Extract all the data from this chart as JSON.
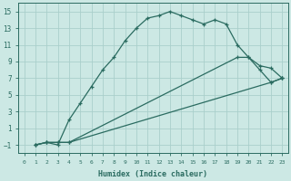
{
  "xlabel": "Humidex (Indice chaleur)",
  "ylabel": "",
  "background_color": "#cce8e4",
  "grid_color": "#aacfcb",
  "line_color": "#2a6b60",
  "xlim": [
    -0.5,
    23.5
  ],
  "ylim": [
    -2.0,
    16.0
  ],
  "xticks": [
    0,
    1,
    2,
    3,
    4,
    5,
    6,
    7,
    8,
    9,
    10,
    11,
    12,
    13,
    14,
    15,
    16,
    17,
    18,
    19,
    20,
    21,
    22,
    23
  ],
  "yticks": [
    -1,
    1,
    3,
    5,
    7,
    9,
    11,
    13,
    15
  ],
  "line1_x": [
    1,
    2,
    3,
    4,
    5,
    6,
    7,
    8,
    9,
    10,
    11,
    12,
    13,
    14,
    15,
    16,
    17,
    18,
    19,
    20,
    21,
    22,
    23
  ],
  "line1_y": [
    -1,
    -0.7,
    -1,
    2.0,
    4.0,
    6.0,
    8.0,
    9.5,
    11.5,
    13.0,
    14.2,
    14.5,
    15.0,
    14.5,
    14.0,
    13.5,
    14.0,
    13.5,
    11.0,
    9.5,
    8.0,
    6.5,
    7.0
  ],
  "line2_x": [
    1,
    2,
    3,
    4,
    22,
    23
  ],
  "line2_y": [
    -1,
    -0.7,
    -0.7,
    -0.7,
    6.5,
    7.0
  ],
  "line3_x": [
    1,
    2,
    3,
    4,
    19,
    20,
    21,
    22,
    23
  ],
  "line3_y": [
    -1,
    -0.7,
    -0.7,
    -0.7,
    9.5,
    9.5,
    8.5,
    8.2,
    7.0
  ]
}
